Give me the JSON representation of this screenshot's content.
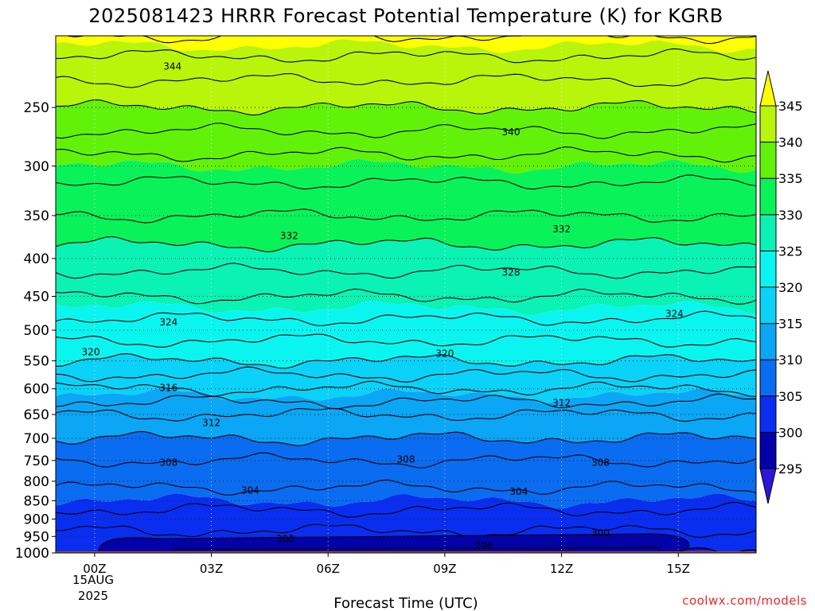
{
  "chart_data": {
    "type": "heatmap",
    "title": "2025081423 HRRR Forecast Potential Temperature (K) for KGRB",
    "xlabel": "Forecast Time (UTC)",
    "ylabel": "",
    "x_ticks": [
      "00Z",
      "03Z",
      "06Z",
      "09Z",
      "12Z",
      "15Z"
    ],
    "x_hours": [
      0,
      3,
      6,
      9,
      12,
      15
    ],
    "x_date_label": [
      "15AUG",
      "2025"
    ],
    "xlim": [
      -1,
      17
    ],
    "y_ticks": [
      250,
      300,
      350,
      400,
      450,
      500,
      550,
      600,
      650,
      700,
      750,
      800,
      850,
      900,
      950,
      1000
    ],
    "ylim": [
      1000,
      200
    ],
    "colorbar": {
      "ticks": [
        295,
        300,
        305,
        310,
        315,
        320,
        325,
        330,
        335,
        340,
        345
      ],
      "bins": [
        {
          "lo": 290,
          "hi": 295,
          "color": "#2c16d8"
        },
        {
          "lo": 295,
          "hi": 300,
          "color": "#0202a8"
        },
        {
          "lo": 300,
          "hi": 305,
          "color": "#0a2ef0"
        },
        {
          "lo": 305,
          "hi": 310,
          "color": "#0a6cf0"
        },
        {
          "lo": 310,
          "hi": 315,
          "color": "#0ba6f5"
        },
        {
          "lo": 315,
          "hi": 320,
          "color": "#0ad2f8"
        },
        {
          "lo": 320,
          "hi": 325,
          "color": "#0af5f0"
        },
        {
          "lo": 325,
          "hi": 330,
          "color": "#0af2b4"
        },
        {
          "lo": 330,
          "hi": 335,
          "color": "#0af25a"
        },
        {
          "lo": 335,
          "hi": 340,
          "color": "#62f20a"
        },
        {
          "lo": 340,
          "hi": 345,
          "color": "#b8f50a"
        },
        {
          "lo": 345,
          "hi": 350,
          "color": "#ffff00"
        }
      ]
    },
    "ground_color": "#a0522d",
    "ground_level_hpa": 1000,
    "theta_profile": {
      "pressure": [
        1000,
        950,
        900,
        850,
        800,
        750,
        700,
        650,
        600,
        550,
        500,
        450,
        400,
        350,
        300,
        250,
        220,
        200
      ],
      "theta": [
        300.5,
        301.5,
        303,
        305,
        306.5,
        308,
        310,
        312,
        316,
        320,
        323,
        326,
        329,
        332,
        335,
        340,
        343,
        346
      ]
    },
    "contour_labels": [
      {
        "text": "344",
        "x": 2.0,
        "p": 220
      },
      {
        "text": "340",
        "x": 10.7,
        "p": 270
      },
      {
        "text": "332",
        "x": 5.0,
        "p": 373
      },
      {
        "text": "332",
        "x": 12.0,
        "p": 365
      },
      {
        "text": "328",
        "x": 10.7,
        "p": 418
      },
      {
        "text": "324",
        "x": 1.9,
        "p": 488
      },
      {
        "text": "324",
        "x": 14.9,
        "p": 475
      },
      {
        "text": "320",
        "x": -0.1,
        "p": 535
      },
      {
        "text": "320",
        "x": 9.0,
        "p": 538
      },
      {
        "text": "316",
        "x": 1.9,
        "p": 598
      },
      {
        "text": "312",
        "x": 3.0,
        "p": 667
      },
      {
        "text": "312",
        "x": 12.0,
        "p": 627
      },
      {
        "text": "308",
        "x": 1.9,
        "p": 755
      },
      {
        "text": "308",
        "x": 8.0,
        "p": 748
      },
      {
        "text": "308",
        "x": 13.0,
        "p": 755
      },
      {
        "text": "304",
        "x": 4.0,
        "p": 823
      },
      {
        "text": "304",
        "x": 10.9,
        "p": 826
      },
      {
        "text": "300",
        "x": 4.9,
        "p": 958
      },
      {
        "text": "300",
        "x": 13.0,
        "p": 940
      },
      {
        "text": "296",
        "x": 10.0,
        "p": 978
      }
    ]
  },
  "credit": "coolwx.com/models"
}
